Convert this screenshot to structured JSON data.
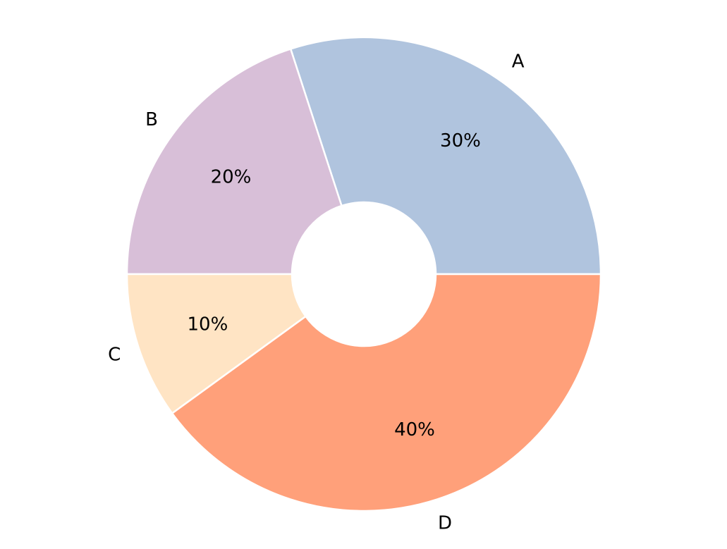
{
  "chart_data": {
    "type": "pie",
    "subtype": "donut",
    "categories": [
      "A",
      "B",
      "C",
      "D"
    ],
    "values": [
      30,
      20,
      10,
      40
    ],
    "percent_labels": [
      "30%",
      "20%",
      "10%",
      "40%"
    ],
    "colors": [
      "#b0c4de",
      "#d8bfd8",
      "#ffe4c4",
      "#ffa07a"
    ],
    "start_angle_degrees": 0,
    "direction": "counterclockwise",
    "legend": "none",
    "grid": false
  }
}
